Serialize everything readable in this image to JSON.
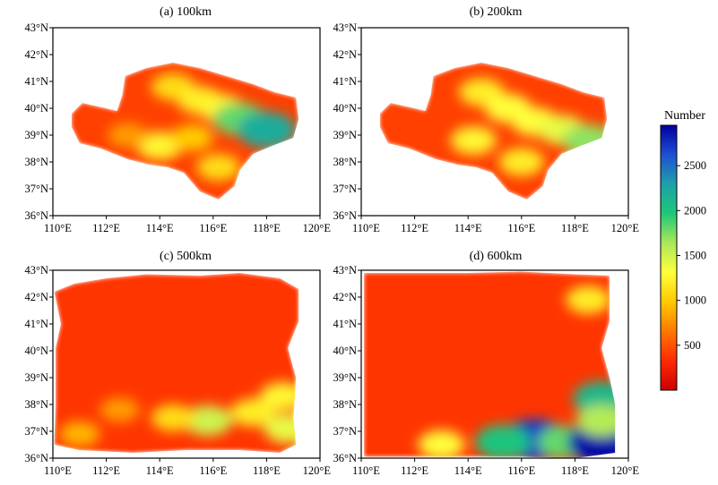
{
  "chart_data": {
    "type": "heatmap",
    "colorbar": {
      "title": "Number",
      "range": [
        0,
        2950
      ],
      "ticks": [
        500,
        1000,
        1500,
        2000,
        2500
      ],
      "tick_labels": [
        "500",
        "1000",
        "1500",
        "2000",
        "2500"
      ],
      "colormap": [
        "#cc0000",
        "#ff2a00",
        "#ff7800",
        "#ffc800",
        "#ffff3c",
        "#aae85a",
        "#1ec878",
        "#1ea0aa",
        "#1e50d2",
        "#0000a0"
      ]
    },
    "axes": {
      "xlim": [
        110,
        120
      ],
      "ylim": [
        36,
        43
      ],
      "xticks": [
        110,
        112,
        114,
        116,
        118,
        120
      ],
      "xtick_labels": [
        "110°E",
        "112°E",
        "114°E",
        "116°E",
        "118°E",
        "120°E"
      ],
      "yticks": [
        36,
        37,
        38,
        39,
        40,
        41,
        42,
        43
      ],
      "ytick_labels": [
        "36°N",
        "37°N",
        "38°N",
        "39°N",
        "40°N",
        "41°N",
        "42°N",
        "43°N"
      ]
    },
    "panels": [
      {
        "title": "(a) 100km",
        "background_level": 420,
        "region": [
          [
            110.7,
            39.8
          ],
          [
            111.1,
            40.2
          ],
          [
            112.0,
            40.0
          ],
          [
            112.4,
            39.9
          ],
          [
            112.6,
            40.5
          ],
          [
            112.7,
            41.2
          ],
          [
            113.5,
            41.5
          ],
          [
            114.5,
            41.7
          ],
          [
            115.5,
            41.5
          ],
          [
            116.5,
            41.2
          ],
          [
            117.5,
            40.9
          ],
          [
            118.3,
            40.6
          ],
          [
            119.1,
            40.4
          ],
          [
            119.2,
            39.6
          ],
          [
            119.0,
            38.9
          ],
          [
            118.2,
            38.6
          ],
          [
            117.5,
            38.3
          ],
          [
            117.0,
            37.7
          ],
          [
            116.8,
            37.1
          ],
          [
            116.2,
            36.6
          ],
          [
            115.5,
            36.9
          ],
          [
            114.9,
            37.6
          ],
          [
            114.3,
            37.8
          ],
          [
            113.6,
            37.9
          ],
          [
            112.8,
            38.1
          ],
          [
            111.8,
            38.5
          ],
          [
            111.0,
            38.7
          ],
          [
            110.7,
            39.3
          ]
        ],
        "hotspots": [
          {
            "lon": 114.5,
            "lat": 40.8,
            "value": 1100
          },
          {
            "lon": 115.5,
            "lat": 40.3,
            "value": 1200
          },
          {
            "lon": 116.3,
            "lat": 40.0,
            "value": 1250
          },
          {
            "lon": 114.0,
            "lat": 38.6,
            "value": 1250
          },
          {
            "lon": 115.2,
            "lat": 38.9,
            "value": 1000
          },
          {
            "lon": 116.2,
            "lat": 37.8,
            "value": 1100
          },
          {
            "lon": 117.0,
            "lat": 39.6,
            "value": 1800
          },
          {
            "lon": 118.0,
            "lat": 39.2,
            "value": 2200
          },
          {
            "lon": 112.8,
            "lat": 39.0,
            "value": 800
          }
        ]
      },
      {
        "title": "(b) 200km",
        "background_level": 420,
        "region": [
          [
            110.7,
            39.8
          ],
          [
            111.1,
            40.2
          ],
          [
            112.0,
            40.0
          ],
          [
            112.4,
            39.9
          ],
          [
            112.6,
            40.5
          ],
          [
            112.7,
            41.2
          ],
          [
            113.5,
            41.5
          ],
          [
            114.5,
            41.7
          ],
          [
            115.5,
            41.5
          ],
          [
            116.5,
            41.2
          ],
          [
            117.5,
            40.9
          ],
          [
            118.3,
            40.6
          ],
          [
            119.1,
            40.4
          ],
          [
            119.2,
            39.6
          ],
          [
            119.0,
            38.9
          ],
          [
            118.2,
            38.6
          ],
          [
            117.5,
            38.3
          ],
          [
            117.0,
            37.7
          ],
          [
            116.8,
            37.1
          ],
          [
            116.2,
            36.6
          ],
          [
            115.5,
            36.9
          ],
          [
            114.9,
            37.6
          ],
          [
            114.3,
            37.8
          ],
          [
            113.6,
            37.9
          ],
          [
            112.8,
            38.1
          ],
          [
            111.8,
            38.5
          ],
          [
            111.0,
            38.7
          ],
          [
            110.7,
            39.3
          ]
        ],
        "hotspots": [
          {
            "lon": 114.5,
            "lat": 40.6,
            "value": 1200
          },
          {
            "lon": 115.5,
            "lat": 40.0,
            "value": 1300
          },
          {
            "lon": 116.5,
            "lat": 39.5,
            "value": 1300
          },
          {
            "lon": 114.2,
            "lat": 38.8,
            "value": 1250
          },
          {
            "lon": 116.0,
            "lat": 38.0,
            "value": 1200
          },
          {
            "lon": 117.5,
            "lat": 39.2,
            "value": 1400
          },
          {
            "lon": 118.5,
            "lat": 38.8,
            "value": 1700
          }
        ]
      },
      {
        "title": "(c) 500km",
        "background_level": 380,
        "region": [
          [
            110.05,
            42.2
          ],
          [
            110.8,
            42.5
          ],
          [
            112.0,
            42.7
          ],
          [
            113.5,
            42.85
          ],
          [
            115.5,
            42.8
          ],
          [
            117.0,
            42.9
          ],
          [
            118.5,
            42.7
          ],
          [
            119.2,
            42.3
          ],
          [
            119.2,
            41.1
          ],
          [
            118.8,
            40.1
          ],
          [
            119.1,
            39.0
          ],
          [
            119.0,
            37.5
          ],
          [
            119.1,
            36.5
          ],
          [
            118.5,
            36.2
          ],
          [
            117.0,
            36.3
          ],
          [
            115.0,
            36.3
          ],
          [
            113.0,
            36.2
          ],
          [
            111.0,
            36.3
          ],
          [
            110.05,
            36.5
          ],
          [
            110.1,
            38.0
          ],
          [
            110.1,
            40.1
          ],
          [
            110.3,
            41.0
          ]
        ],
        "hotspots": [
          {
            "lon": 115.8,
            "lat": 37.4,
            "value": 1500
          },
          {
            "lon": 114.5,
            "lat": 37.5,
            "value": 1100
          },
          {
            "lon": 117.5,
            "lat": 37.7,
            "value": 1200
          },
          {
            "lon": 118.6,
            "lat": 38.3,
            "value": 1250
          },
          {
            "lon": 118.8,
            "lat": 37.1,
            "value": 1400
          },
          {
            "lon": 112.5,
            "lat": 37.8,
            "value": 800
          },
          {
            "lon": 111.0,
            "lat": 36.9,
            "value": 900
          }
        ]
      },
      {
        "title": "(d) 600km",
        "background_level": 380,
        "region": [
          [
            110.1,
            42.9
          ],
          [
            112.0,
            42.9
          ],
          [
            114.0,
            42.9
          ],
          [
            116.0,
            42.95
          ],
          [
            118.0,
            42.85
          ],
          [
            119.3,
            42.8
          ],
          [
            119.3,
            41.1
          ],
          [
            119.0,
            40.1
          ],
          [
            119.3,
            39.0
          ],
          [
            119.5,
            38.0
          ],
          [
            119.5,
            36.2
          ],
          [
            118.0,
            36.0
          ],
          [
            116.0,
            36.05
          ],
          [
            113.0,
            36.05
          ],
          [
            110.1,
            36.05
          ],
          [
            110.1,
            38.0
          ],
          [
            110.1,
            40.5
          ]
        ],
        "hotspots": [
          {
            "lon": 116.5,
            "lat": 36.7,
            "value": 2700
          },
          {
            "lon": 115.3,
            "lat": 36.6,
            "value": 2000
          },
          {
            "lon": 117.6,
            "lat": 36.6,
            "value": 1800
          },
          {
            "lon": 119.0,
            "lat": 36.6,
            "value": 2900
          },
          {
            "lon": 119.0,
            "lat": 38.2,
            "value": 2100
          },
          {
            "lon": 119.0,
            "lat": 37.4,
            "value": 1600
          },
          {
            "lon": 118.5,
            "lat": 41.9,
            "value": 1200
          },
          {
            "lon": 113.0,
            "lat": 36.5,
            "value": 1300
          }
        ]
      }
    ]
  }
}
